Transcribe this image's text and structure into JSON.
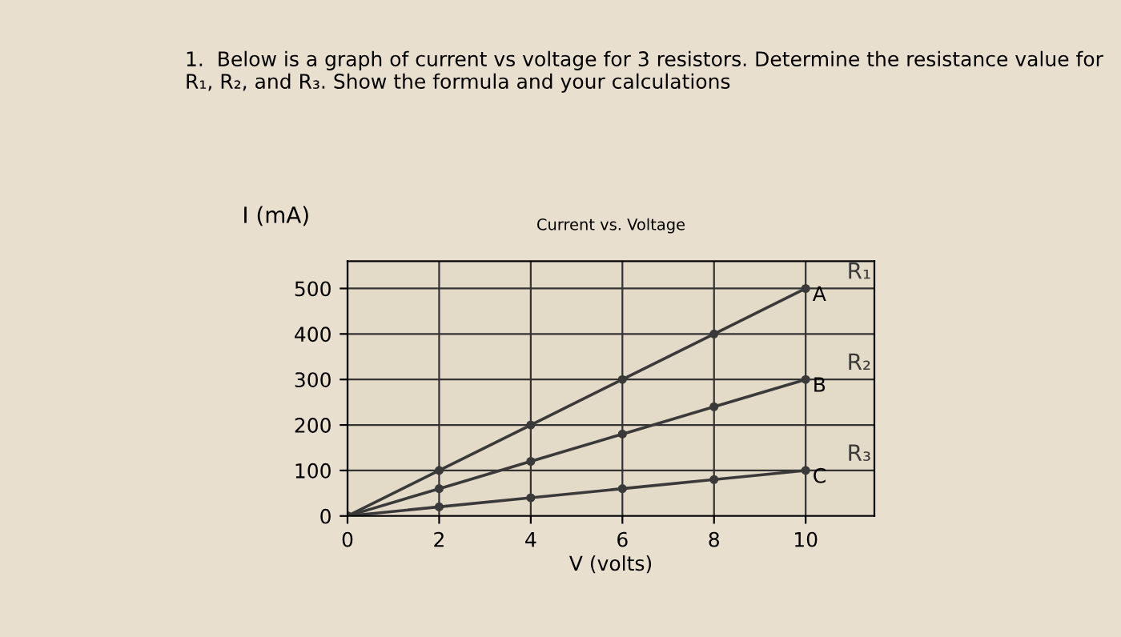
{
  "chart_data": {
    "type": "line",
    "title": "Current vs. Voltage",
    "xlabel": "V (volts)",
    "ylabel": "I (mA)",
    "x": [
      0,
      2,
      4,
      6,
      8,
      10
    ],
    "series": [
      {
        "name": "R₁",
        "color": "#3a3a3a",
        "values": [
          0,
          100,
          200,
          300,
          400,
          500
        ]
      },
      {
        "name": "R₂",
        "color": "#3a3a3a",
        "values": [
          0,
          60,
          120,
          180,
          240,
          300
        ]
      },
      {
        "name": "R₃",
        "color": "#3a3a3a",
        "values": [
          0,
          20,
          40,
          60,
          80,
          100
        ]
      }
    ],
    "xlim": [
      0,
      11.5
    ],
    "ylim": [
      0,
      560
    ],
    "xticks": [
      0,
      2,
      4,
      6,
      8,
      10
    ],
    "yticks": [
      0,
      100,
      200,
      300,
      400,
      500
    ],
    "grid": true,
    "marker": "circle",
    "line_style": "solid",
    "legend": false,
    "annotations": [
      "1.  Below is a graph of current vs voltage for 3 resistors. Determine the resistance value for R₁, R₂, and R₃. Show the formula and your calculations",
      "A",
      "B",
      "C"
    ]
  }
}
